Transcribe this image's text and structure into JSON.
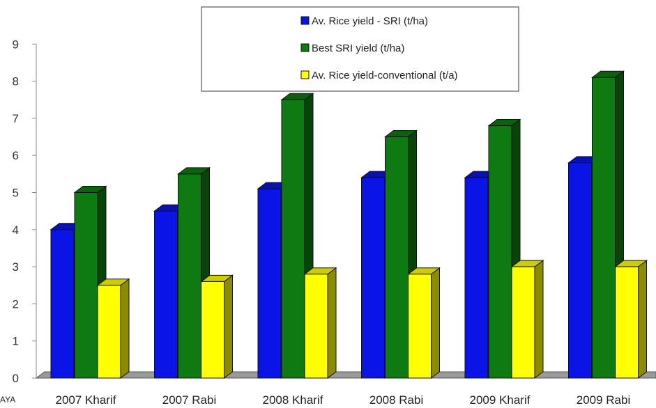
{
  "chart_data": {
    "type": "bar",
    "title": "",
    "xlabel": "",
    "ylabel": "",
    "ylim": [
      0,
      9
    ],
    "yticks": [
      "0",
      "1",
      "2",
      "3",
      "4",
      "5",
      "6",
      "7",
      "8",
      "9"
    ],
    "categories": [
      "2007 Kharif",
      "2007 Rabi",
      "2008 Kharif",
      "2008 Rabi",
      "2009 Kharif",
      "2009 Rabi"
    ],
    "series": [
      {
        "name": "Av. Rice yield - SRI (t/ha)",
        "color": "#0a14e6",
        "values": [
          4.0,
          4.5,
          5.1,
          5.4,
          5.4,
          5.8
        ]
      },
      {
        "name": "Best SRI yield (t/ha)",
        "color": "#0e7a12",
        "values": [
          5.0,
          5.5,
          7.5,
          6.5,
          6.8,
          8.1
        ]
      },
      {
        "name": "Av. Rice yield-conventional (t/a)",
        "color": "#ffff00",
        "values": [
          2.5,
          2.6,
          2.8,
          2.8,
          3.0,
          3.0
        ]
      }
    ],
    "legend_position": "top-center",
    "grid": false
  },
  "corner_text": "AYA"
}
